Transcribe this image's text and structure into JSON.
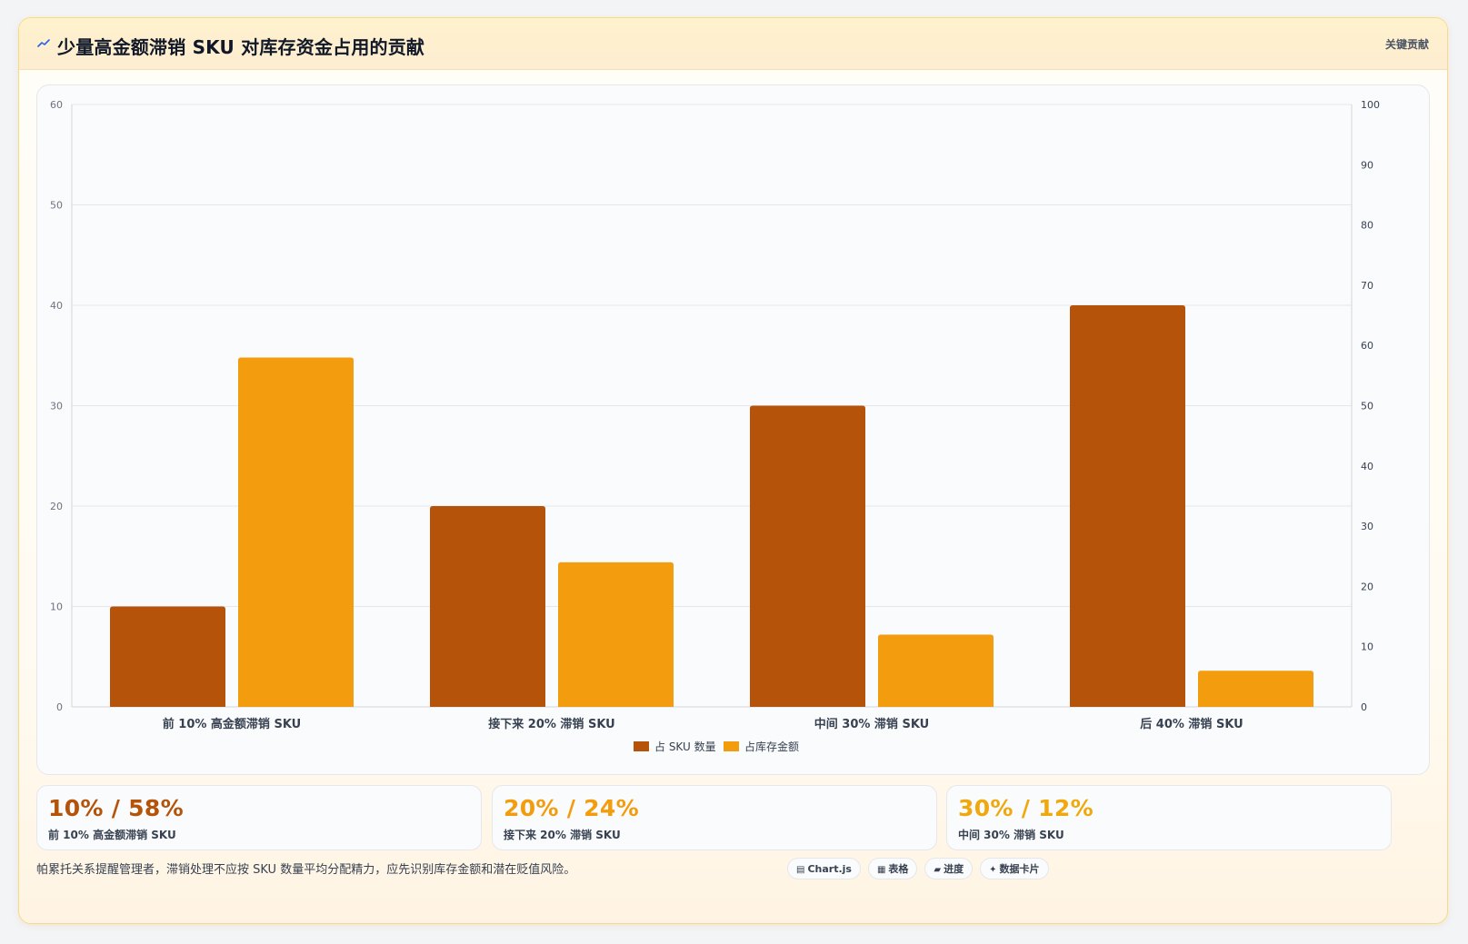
{
  "header": {
    "icon": "chart-icon",
    "title": "少量高金额滞销 SKU 对库存资金占用的贡献",
    "badge": "关键贡献"
  },
  "colors": {
    "sku_count": "#b45309",
    "inventory_amount": "#f39c0e"
  },
  "chart_data": {
    "type": "bar",
    "categories": [
      "前 10% 高金额滞销 SKU",
      "接下来 20% 滞销 SKU",
      "中间 30% 滞销 SKU",
      "后 40% 滞销 SKU"
    ],
    "series": [
      {
        "name": "占 SKU 数量",
        "axis": "left",
        "values": [
          10,
          20,
          30,
          40
        ]
      },
      {
        "name": "占库存金额",
        "axis": "right",
        "values": [
          58,
          24,
          12,
          6
        ]
      }
    ],
    "y_left": {
      "min": 0,
      "max": 60,
      "ticks": [
        0,
        10,
        20,
        30,
        40,
        50,
        60
      ]
    },
    "y_right": {
      "min": 0,
      "max": 100,
      "ticks": [
        0,
        10,
        20,
        30,
        40,
        50,
        60,
        70,
        80,
        90,
        100
      ]
    },
    "grid": true,
    "legend_position": "bottom"
  },
  "stats": [
    {
      "value": "10% / 58%",
      "label": "前 10% 高金额滞销 SKU",
      "color": "#b45309"
    },
    {
      "value": "20% / 24%",
      "label": "接下来 20% 滞销 SKU",
      "color": "#f39c0e"
    },
    {
      "value": "30% / 12%",
      "label": "中间 30% 滞销 SKU",
      "color": "#f0a80c"
    }
  ],
  "footnote": "帕累托关系提醒管理者，滞销处理不应按 SKU 数量平均分配精力，应先识别库存金额和潜在贬值风险。",
  "tags": [
    {
      "icon": "chart-icon",
      "glyph": "▤",
      "label": "Chart.js"
    },
    {
      "icon": "table-icon",
      "glyph": "▦",
      "label": "表格"
    },
    {
      "icon": "progress-icon",
      "glyph": "▰",
      "label": "进度"
    },
    {
      "icon": "data-card-icon",
      "glyph": "✦",
      "label": "数据卡片"
    }
  ]
}
